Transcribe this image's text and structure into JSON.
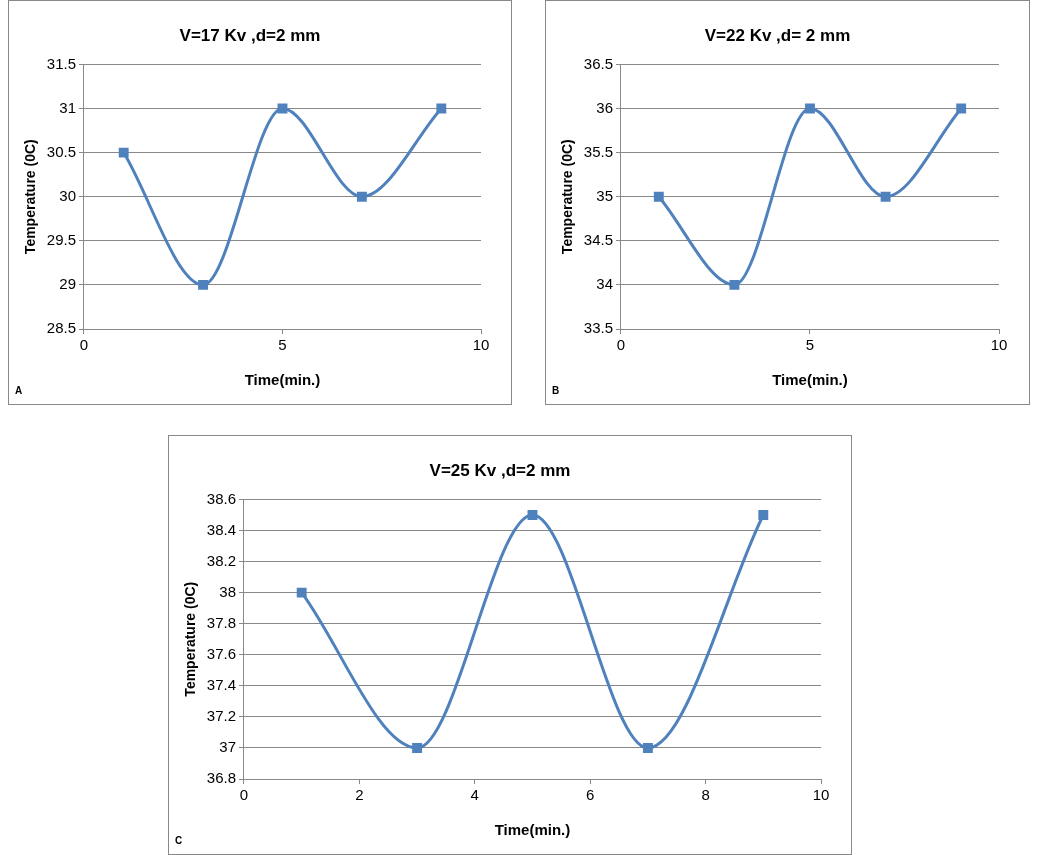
{
  "chart_data": [
    {
      "type": "line",
      "title": "V=17 Kv ,d=2 mm",
      "xlabel": "Time(min.)",
      "ylabel": "Temperature (0C)",
      "annotations": [
        "A"
      ],
      "x": [
        1,
        3,
        5,
        7,
        9
      ],
      "series": [
        {
          "color": "#4f81bd",
          "values": [
            30.5,
            29,
            31,
            30,
            31
          ]
        }
      ],
      "xlim": [
        0,
        10
      ],
      "xticks": [
        0,
        5,
        10
      ],
      "ylim": [
        28.5,
        31.5
      ],
      "yticks": [
        28.5,
        29,
        29.5,
        30,
        30.5,
        31,
        31.5
      ],
      "grid": "y",
      "legend": false,
      "marker": "square",
      "line_style": "solid"
    },
    {
      "type": "line",
      "title": "V=22 Kv ,d= 2 mm",
      "xlabel": "Time(min.)",
      "ylabel": "Temperature (0C)",
      "annotations": [
        "B"
      ],
      "x": [
        1,
        3,
        5,
        7,
        9
      ],
      "series": [
        {
          "color": "#4f81bd",
          "values": [
            35,
            34,
            36,
            35,
            36
          ]
        }
      ],
      "xlim": [
        0,
        10
      ],
      "xticks": [
        0,
        5,
        10
      ],
      "ylim": [
        33.5,
        36.5
      ],
      "yticks": [
        33.5,
        34,
        34.5,
        35,
        35.5,
        36,
        36.5
      ],
      "grid": "y",
      "legend": false,
      "marker": "square",
      "line_style": "solid"
    },
    {
      "type": "line",
      "title": "V=25 Kv ,d=2 mm",
      "xlabel": "Time(min.)",
      "ylabel": "Temperature (0C)",
      "annotations": [
        "C"
      ],
      "x": [
        1,
        3,
        5,
        7,
        9
      ],
      "series": [
        {
          "color": "#4f81bd",
          "values": [
            38,
            37,
            38.5,
            37,
            38.5
          ]
        }
      ],
      "xlim": [
        0,
        10
      ],
      "xticks": [
        0,
        2,
        4,
        6,
        8,
        10
      ],
      "ylim": [
        36.8,
        38.6
      ],
      "yticks": [
        36.8,
        37,
        37.2,
        37.4,
        37.6,
        37.8,
        38,
        38.2,
        38.4,
        38.6
      ],
      "grid": "y",
      "legend": false,
      "marker": "square",
      "line_style": "solid"
    }
  ]
}
